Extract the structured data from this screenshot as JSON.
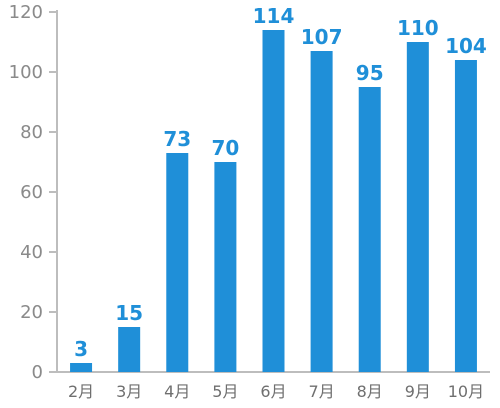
{
  "chart_data": {
    "type": "bar",
    "categories": [
      "2月",
      "3月",
      "4月",
      "5月",
      "6月",
      "7月",
      "8月",
      "9月",
      "10月"
    ],
    "values": [
      3,
      15,
      73,
      70,
      114,
      107,
      95,
      110,
      104
    ],
    "title": "",
    "xlabel": "",
    "ylabel": "",
    "ylim": [
      0,
      120
    ],
    "yticks": [
      0,
      20,
      40,
      60,
      80,
      100,
      120
    ],
    "grid": false,
    "data_labels": true
  },
  "colors": {
    "bar": "#1f8fd8",
    "label": "#1f8fd8",
    "axis": "#bdbdbd"
  }
}
